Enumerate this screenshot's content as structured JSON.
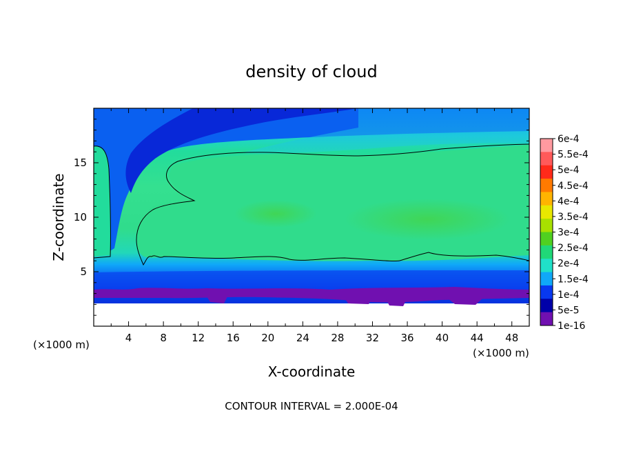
{
  "chart_data": {
    "type": "heatmap",
    "title": "density of cloud",
    "xlabel": "X-coordinate",
    "ylabel": "Z-coordinate",
    "x_unit": "(×1000 m)",
    "y_unit": "(×1000 m)",
    "footer": "CONTOUR INTERVAL = 2.000E-04",
    "xlim": [
      0,
      50
    ],
    "ylim": [
      0,
      20
    ],
    "x_ticks": [
      "4",
      "8",
      "12",
      "16",
      "20",
      "24",
      "28",
      "32",
      "36",
      "40",
      "44",
      "48"
    ],
    "x_tick_values": [
      4,
      8,
      12,
      16,
      20,
      24,
      28,
      32,
      36,
      40,
      44,
      48
    ],
    "y_ticks": [
      "5",
      "10",
      "15"
    ],
    "y_tick_values": [
      5,
      10,
      15
    ],
    "colorbar": {
      "labels": [
        "6e-4",
        "5.5e-4",
        "5e-4",
        "4.5e-4",
        "4e-4",
        "3.5e-4",
        "3e-4",
        "2.5e-4",
        "2e-4",
        "1.5e-4",
        "1e-4",
        "5e-5",
        "1e-16"
      ],
      "colors": [
        "#ff9aa0",
        "#ff5a5a",
        "#ff2a1a",
        "#ff7a00",
        "#ffb400",
        "#e8e800",
        "#a8e000",
        "#50d020",
        "#20d878",
        "#20e0c8",
        "#10a8f8",
        "#0838f0",
        "#0000a8",
        "#7010b0"
      ]
    },
    "contour_level": 0.0002,
    "fields": {
      "cloud_layer_z": [
        6,
        16
      ],
      "dense_core_value": "2.5e-4",
      "dry_band_x": [
        0,
        12
      ],
      "cloud_base_z": 3
    }
  }
}
